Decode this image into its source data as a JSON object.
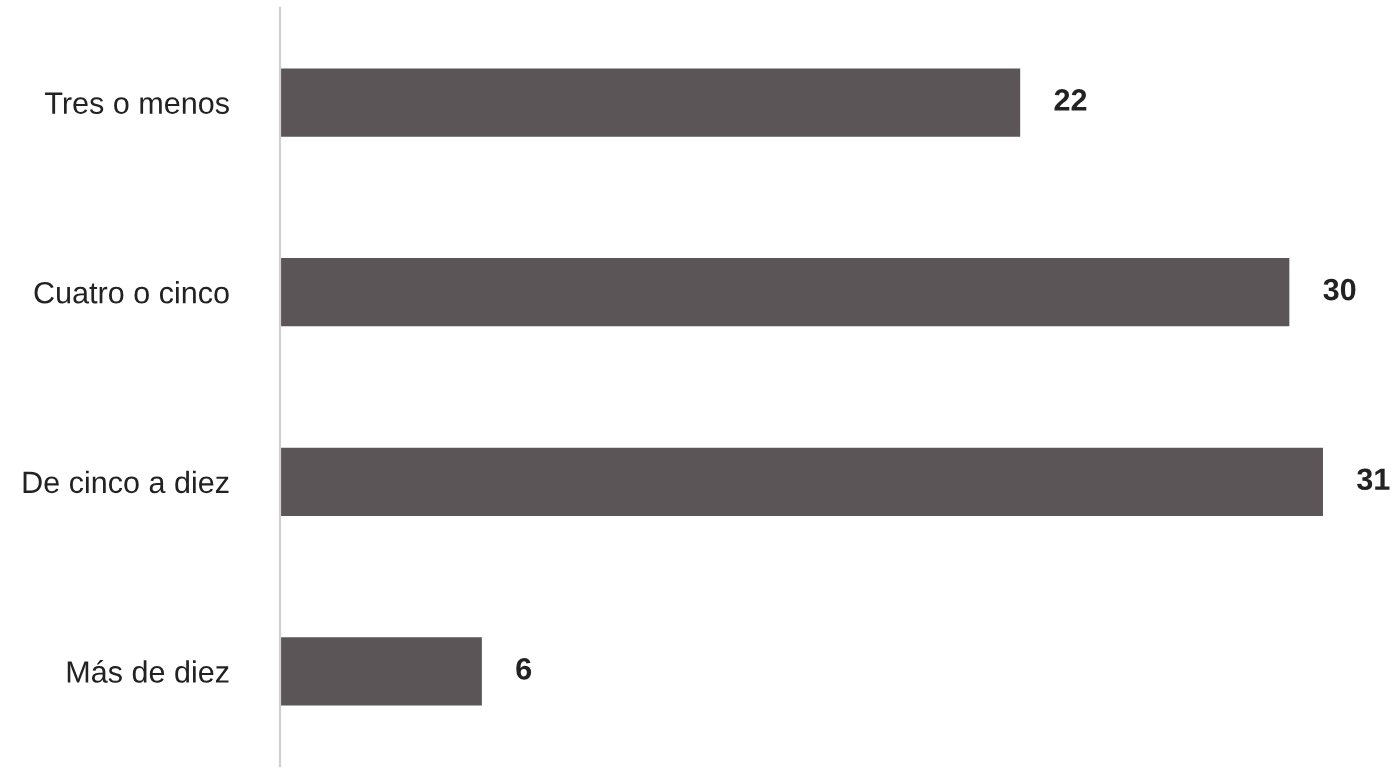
{
  "chart_data": {
    "type": "bar",
    "orientation": "horizontal",
    "categories": [
      "Tres o menos",
      "Cuatro o cinco",
      "De cinco a diez",
      "Más de diez"
    ],
    "values": [
      22,
      30,
      31,
      6
    ],
    "color": "#5b5557",
    "data_labels": true
  }
}
